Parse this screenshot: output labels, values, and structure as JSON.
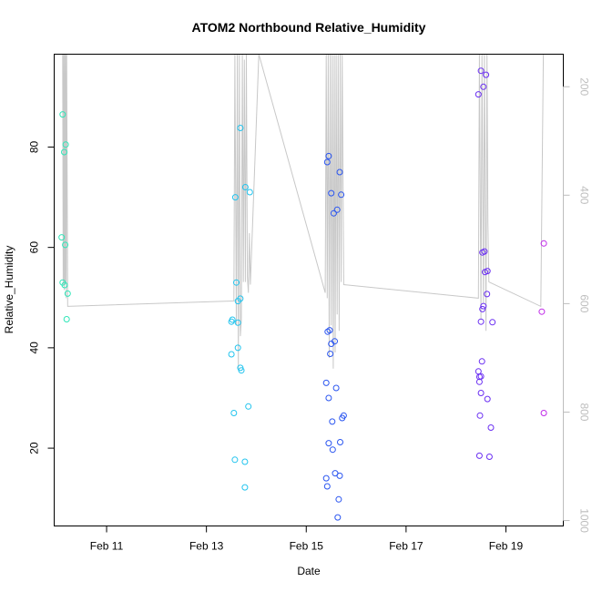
{
  "chart_data": {
    "type": "scatter",
    "title": "ATOM2 Northbound Relative_Humidity",
    "xlabel": "Date",
    "ylabel": "Relative_Humidity",
    "x_ticks": [
      "Feb 11",
      "Feb 13",
      "Feb 15",
      "Feb 17",
      "Feb 19"
    ],
    "x_tick_days": [
      11,
      13,
      15,
      17,
      19
    ],
    "xlim_days": [
      9.95,
      20.15
    ],
    "ylim": [
      4.5,
      98.5
    ],
    "y_ticks": [
      20,
      40,
      60,
      80
    ],
    "right_axis": {
      "ticks": [
        200,
        400,
        600,
        800,
        1000
      ],
      "ylim": [
        1010,
        140
      ],
      "color": "#bdbdbd"
    },
    "series": [
      {
        "color": "#2fe6b8",
        "points": [
          [
            10.12,
            86.5
          ],
          [
            10.18,
            80.5
          ],
          [
            10.15,
            79
          ],
          [
            10.1,
            62
          ],
          [
            10.17,
            60.5
          ],
          [
            10.12,
            53
          ],
          [
            10.16,
            52.5
          ],
          [
            10.22,
            50.8
          ],
          [
            10.2,
            45.7
          ]
        ]
      },
      {
        "color": "#22c4ee",
        "points": [
          [
            13.68,
            83.8
          ],
          [
            13.78,
            72
          ],
          [
            13.87,
            71
          ],
          [
            13.58,
            70
          ],
          [
            13.6,
            53
          ],
          [
            13.68,
            49.8
          ],
          [
            13.63,
            49.3
          ],
          [
            13.52,
            45.6
          ],
          [
            13.5,
            45.2
          ],
          [
            13.63,
            45.0
          ],
          [
            13.63,
            40
          ],
          [
            13.5,
            38.7
          ],
          [
            13.68,
            36
          ],
          [
            13.7,
            35.5
          ],
          [
            13.55,
            27
          ],
          [
            13.84,
            28.3
          ],
          [
            13.57,
            17.7
          ],
          [
            13.77,
            17.3
          ],
          [
            13.77,
            12.2
          ]
        ]
      },
      {
        "color": "#2a55f0",
        "points": [
          [
            15.45,
            78.2
          ],
          [
            15.42,
            77
          ],
          [
            15.67,
            75
          ],
          [
            15.5,
            70.8
          ],
          [
            15.7,
            70.5
          ],
          [
            15.62,
            67.5
          ],
          [
            15.55,
            66.8
          ],
          [
            15.47,
            43.5
          ],
          [
            15.43,
            43.2
          ],
          [
            15.57,
            41.3
          ],
          [
            15.5,
            40.8
          ],
          [
            15.48,
            38.8
          ],
          [
            15.4,
            33
          ],
          [
            15.6,
            32
          ],
          [
            15.45,
            30
          ],
          [
            15.75,
            26.5
          ],
          [
            15.72,
            26
          ],
          [
            15.52,
            25.3
          ],
          [
            15.45,
            21
          ],
          [
            15.68,
            21.2
          ],
          [
            15.53,
            19.7
          ],
          [
            15.58,
            15
          ],
          [
            15.67,
            14.5
          ],
          [
            15.4,
            14
          ],
          [
            15.42,
            12.4
          ],
          [
            15.65,
            9.8
          ],
          [
            15.63,
            6.2
          ]
        ]
      },
      {
        "color": "#6a2ef2",
        "points": [
          [
            18.5,
            95.2
          ],
          [
            18.6,
            94.4
          ],
          [
            18.55,
            92
          ],
          [
            18.45,
            90.5
          ],
          [
            18.57,
            59.2
          ],
          [
            18.53,
            59
          ],
          [
            18.63,
            55.3
          ],
          [
            18.58,
            55.1
          ],
          [
            18.62,
            50.7
          ],
          [
            18.55,
            48.3
          ],
          [
            18.53,
            47.7
          ],
          [
            18.5,
            45.2
          ],
          [
            18.73,
            45.1
          ],
          [
            18.52,
            37.3
          ],
          [
            18.45,
            35.3
          ],
          [
            18.47,
            34.2
          ],
          [
            18.5,
            34.3
          ],
          [
            18.47,
            33.2
          ],
          [
            18.5,
            31
          ],
          [
            18.63,
            29.8
          ],
          [
            18.48,
            26.5
          ],
          [
            18.7,
            24.1
          ],
          [
            18.47,
            18.5
          ],
          [
            18.67,
            18.3
          ]
        ]
      },
      {
        "color": "#c02ae8",
        "points": [
          [
            19.76,
            60.8
          ],
          [
            19.72,
            47.2
          ],
          [
            19.76,
            27
          ]
        ]
      }
    ],
    "secondary_line": {
      "color": "#c8c8c8",
      "points": [
        [
          10.12,
          140
        ],
        [
          10.13,
          565
        ],
        [
          10.14,
          140
        ],
        [
          10.15,
          575
        ],
        [
          10.16,
          140
        ],
        [
          10.17,
          560
        ],
        [
          10.18,
          140
        ],
        [
          10.19,
          590
        ],
        [
          10.2,
          140
        ],
        [
          10.22,
          605
        ],
        [
          13.55,
          595
        ],
        [
          13.57,
          140
        ],
        [
          13.6,
          640
        ],
        [
          13.62,
          140
        ],
        [
          13.64,
          720
        ],
        [
          13.66,
          140
        ],
        [
          13.68,
          660
        ],
        [
          13.7,
          630
        ],
        [
          13.72,
          140
        ],
        [
          13.74,
          560
        ],
        [
          13.76,
          150
        ],
        [
          13.78,
          560
        ],
        [
          13.8,
          140
        ],
        [
          13.82,
          550
        ],
        [
          13.84,
          580
        ],
        [
          13.86,
          470
        ],
        [
          13.88,
          565
        ],
        [
          14.05,
          140
        ],
        [
          15.38,
          580
        ],
        [
          15.4,
          140
        ],
        [
          15.42,
          590
        ],
        [
          15.44,
          140
        ],
        [
          15.46,
          700
        ],
        [
          15.48,
          140
        ],
        [
          15.5,
          640
        ],
        [
          15.52,
          140
        ],
        [
          15.54,
          720
        ],
        [
          15.56,
          140
        ],
        [
          15.58,
          690
        ],
        [
          15.6,
          140
        ],
        [
          15.62,
          620
        ],
        [
          15.64,
          140
        ],
        [
          15.66,
          650
        ],
        [
          15.68,
          140
        ],
        [
          15.7,
          560
        ],
        [
          15.72,
          140
        ],
        [
          15.75,
          565
        ],
        [
          18.45,
          590
        ],
        [
          18.47,
          140
        ],
        [
          18.5,
          630
        ],
        [
          18.52,
          140
        ],
        [
          18.55,
          600
        ],
        [
          18.57,
          140
        ],
        [
          18.6,
          650
        ],
        [
          18.62,
          140
        ],
        [
          18.64,
          450
        ],
        [
          18.66,
          560
        ],
        [
          19.7,
          605
        ],
        [
          19.75,
          140
        ]
      ]
    }
  }
}
